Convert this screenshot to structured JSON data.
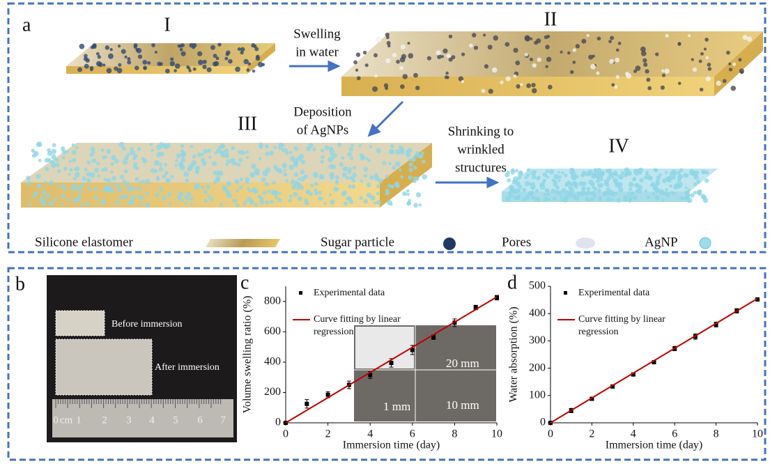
{
  "panel_a": {
    "panel_label": "a",
    "stage_labels": [
      "I",
      "II",
      "III",
      "IV"
    ],
    "step_1": [
      "Swelling",
      "in water"
    ],
    "step_2": [
      "Deposition",
      "of AgNPs"
    ],
    "step_3": [
      "Shrinking to",
      "wrinkled",
      "structures"
    ],
    "legend": [
      "Silicone elastomer",
      "Sugar particle",
      "Pores",
      "AgNP"
    ]
  },
  "panel_b": {
    "panel_label": "b",
    "before": "Before immersion",
    "after": "After immersion",
    "ruler_labels": [
      "0",
      "cm",
      "1",
      "2",
      "3",
      "4",
      "5",
      "6",
      "7"
    ]
  },
  "chart_data": [
    {
      "type": "scatter",
      "panel_label": "c",
      "xlabel": "Immersion time (day)",
      "ylabel": "Volume swelling ratio (%)",
      "xlim": [
        0,
        10
      ],
      "xticks": [
        0,
        2,
        4,
        6,
        8,
        10
      ],
      "ylim": [
        0,
        900
      ],
      "yticks": [
        0,
        200,
        400,
        600,
        800
      ],
      "inset_labels": [
        "20 mm",
        "1 mm",
        "10 mm"
      ],
      "series": [
        {
          "name": "Experimental data",
          "color": "#000000",
          "x": [
            0,
            1,
            2,
            3,
            4,
            5,
            6,
            7,
            8,
            9,
            10
          ],
          "values": [
            0,
            125,
            185,
            250,
            315,
            395,
            480,
            565,
            660,
            760,
            825
          ],
          "errors": [
            0,
            28,
            20,
            25,
            22,
            28,
            30,
            15,
            25,
            15,
            15
          ]
        },
        {
          "name": "Curve fitting by linear regression",
          "color": "#c00000",
          "style": "line",
          "x": [
            0,
            10
          ],
          "values": [
            0,
            830
          ]
        }
      ]
    },
    {
      "type": "scatter",
      "panel_label": "d",
      "xlabel": "Immersion time (day)",
      "ylabel": "Water absorption (%)",
      "xlim": [
        0,
        10
      ],
      "xticks": [
        0,
        2,
        4,
        6,
        8,
        10
      ],
      "ylim": [
        0,
        500
      ],
      "yticks": [
        0,
        100,
        200,
        300,
        400,
        500
      ],
      "series": [
        {
          "name": "Experimental data",
          "color": "#000000",
          "x": [
            0,
            1,
            2,
            3,
            4,
            5,
            6,
            7,
            8,
            9,
            10
          ],
          "values": [
            0,
            45,
            88,
            133,
            177,
            222,
            272,
            316,
            360,
            410,
            452
          ],
          "errors": [
            0,
            8,
            6,
            6,
            5,
            5,
            8,
            10,
            9,
            8,
            6
          ]
        },
        {
          "name": "Curve fitting by linear regression",
          "color": "#c00000",
          "style": "line",
          "x": [
            0,
            10
          ],
          "values": [
            0,
            455
          ]
        }
      ]
    }
  ]
}
